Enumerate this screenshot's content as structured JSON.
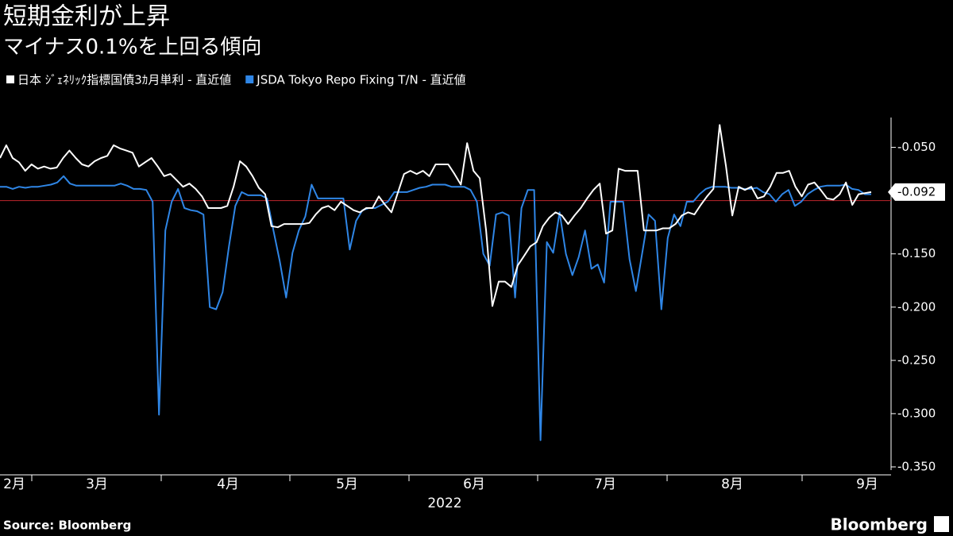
{
  "chart_data": {
    "type": "line",
    "title": "短期金利が上昇",
    "subtitle": "マイナス0.1%を上回る傾向",
    "x_labels": [
      "2月",
      "3月",
      "4月",
      "5月",
      "6月",
      "7月",
      "8月",
      "9月"
    ],
    "x_year": "2022",
    "ylim": [
      -0.353,
      -0.022
    ],
    "yticks": [
      {
        "value": -0.05,
        "label": "-0.050"
      },
      {
        "value": -0.15,
        "label": "-0.150"
      },
      {
        "value": -0.2,
        "label": "-0.200"
      },
      {
        "value": -0.25,
        "label": "-0.250"
      },
      {
        "value": -0.3,
        "label": "-0.300"
      },
      {
        "value": -0.35,
        "label": "-0.350"
      }
    ],
    "reference_line": -0.1,
    "reference_color": "#c0262d",
    "source": "Source: Bloomberg",
    "brand": "Bloomberg",
    "series": [
      {
        "name": "日本 ｼﾞｪﾈﾘｯｸ指標国債3ｶ月単利 - 直近値",
        "color": "#ffffff",
        "last_value_label": "-0.092",
        "values": [
          -0.06,
          -0.048,
          -0.06,
          -0.064,
          -0.072,
          -0.066,
          -0.07,
          -0.068,
          -0.07,
          -0.069,
          -0.06,
          -0.053,
          -0.06,
          -0.066,
          -0.068,
          -0.063,
          -0.06,
          -0.058,
          -0.048,
          -0.051,
          -0.053,
          -0.055,
          -0.068,
          -0.064,
          -0.06,
          -0.068,
          -0.077,
          -0.075,
          -0.081,
          -0.087,
          -0.084,
          -0.089,
          -0.096,
          -0.107,
          -0.107,
          -0.107,
          -0.105,
          -0.087,
          -0.063,
          -0.068,
          -0.077,
          -0.088,
          -0.094,
          -0.124,
          -0.125,
          -0.122,
          -0.122,
          -0.122,
          -0.122,
          -0.121,
          -0.113,
          -0.107,
          -0.105,
          -0.109,
          -0.101,
          -0.105,
          -0.109,
          -0.111,
          -0.107,
          -0.107,
          -0.096,
          -0.104,
          -0.111,
          -0.093,
          -0.075,
          -0.072,
          -0.075,
          -0.072,
          -0.077,
          -0.066,
          -0.066,
          -0.066,
          -0.075,
          -0.085,
          -0.046,
          -0.072,
          -0.079,
          -0.128,
          -0.199,
          -0.176,
          -0.176,
          -0.181,
          -0.161,
          -0.152,
          -0.143,
          -0.139,
          -0.124,
          -0.116,
          -0.111,
          -0.114,
          -0.122,
          -0.114,
          -0.107,
          -0.098,
          -0.09,
          -0.084,
          -0.131,
          -0.128,
          -0.07,
          -0.072,
          -0.072,
          -0.072,
          -0.128,
          -0.128,
          -0.128,
          -0.126,
          -0.126,
          -0.122,
          -0.114,
          -0.111,
          -0.113,
          -0.104,
          -0.096,
          -0.089,
          -0.029,
          -0.068,
          -0.114,
          -0.087,
          -0.09,
          -0.087,
          -0.098,
          -0.096,
          -0.087,
          -0.074,
          -0.074,
          -0.072,
          -0.087,
          -0.096,
          -0.085,
          -0.083,
          -0.09,
          -0.098,
          -0.099,
          -0.094,
          -0.083,
          -0.104,
          -0.094,
          -0.093,
          -0.092
        ]
      },
      {
        "name": "JSDA Tokyo Repo Fixing T/N - 直近値",
        "color": "#2f86e6",
        "values": [
          -0.087,
          -0.087,
          -0.089,
          -0.087,
          -0.088,
          -0.087,
          -0.087,
          -0.086,
          -0.085,
          -0.083,
          -0.077,
          -0.084,
          -0.086,
          -0.086,
          -0.086,
          -0.086,
          -0.086,
          -0.086,
          -0.086,
          -0.084,
          -0.086,
          -0.089,
          -0.089,
          -0.09,
          -0.101,
          -0.301,
          -0.128,
          -0.101,
          -0.089,
          -0.107,
          -0.109,
          -0.11,
          -0.113,
          -0.2,
          -0.202,
          -0.186,
          -0.143,
          -0.105,
          -0.092,
          -0.095,
          -0.095,
          -0.095,
          -0.098,
          -0.128,
          -0.157,
          -0.191,
          -0.149,
          -0.128,
          -0.115,
          -0.085,
          -0.098,
          -0.098,
          -0.098,
          -0.098,
          -0.098,
          -0.146,
          -0.119,
          -0.109,
          -0.107,
          -0.107,
          -0.104,
          -0.101,
          -0.092,
          -0.092,
          -0.092,
          -0.09,
          -0.088,
          -0.087,
          -0.085,
          -0.085,
          -0.085,
          -0.087,
          -0.087,
          -0.087,
          -0.09,
          -0.101,
          -0.15,
          -0.161,
          -0.113,
          -0.111,
          -0.114,
          -0.191,
          -0.107,
          -0.09,
          -0.09,
          -0.325,
          -0.139,
          -0.149,
          -0.111,
          -0.15,
          -0.17,
          -0.153,
          -0.128,
          -0.164,
          -0.16,
          -0.177,
          -0.101,
          -0.101,
          -0.101,
          -0.155,
          -0.185,
          -0.149,
          -0.113,
          -0.119,
          -0.202,
          -0.135,
          -0.113,
          -0.124,
          -0.101,
          -0.101,
          -0.094,
          -0.089,
          -0.087,
          -0.087,
          -0.087,
          -0.088,
          -0.088,
          -0.089,
          -0.089,
          -0.088,
          -0.092,
          -0.094,
          -0.101,
          -0.094,
          -0.09,
          -0.105,
          -0.101,
          -0.094,
          -0.09,
          -0.087,
          -0.086,
          -0.086,
          -0.086,
          -0.085,
          -0.089,
          -0.09,
          -0.094,
          -0.094
        ]
      }
    ]
  }
}
